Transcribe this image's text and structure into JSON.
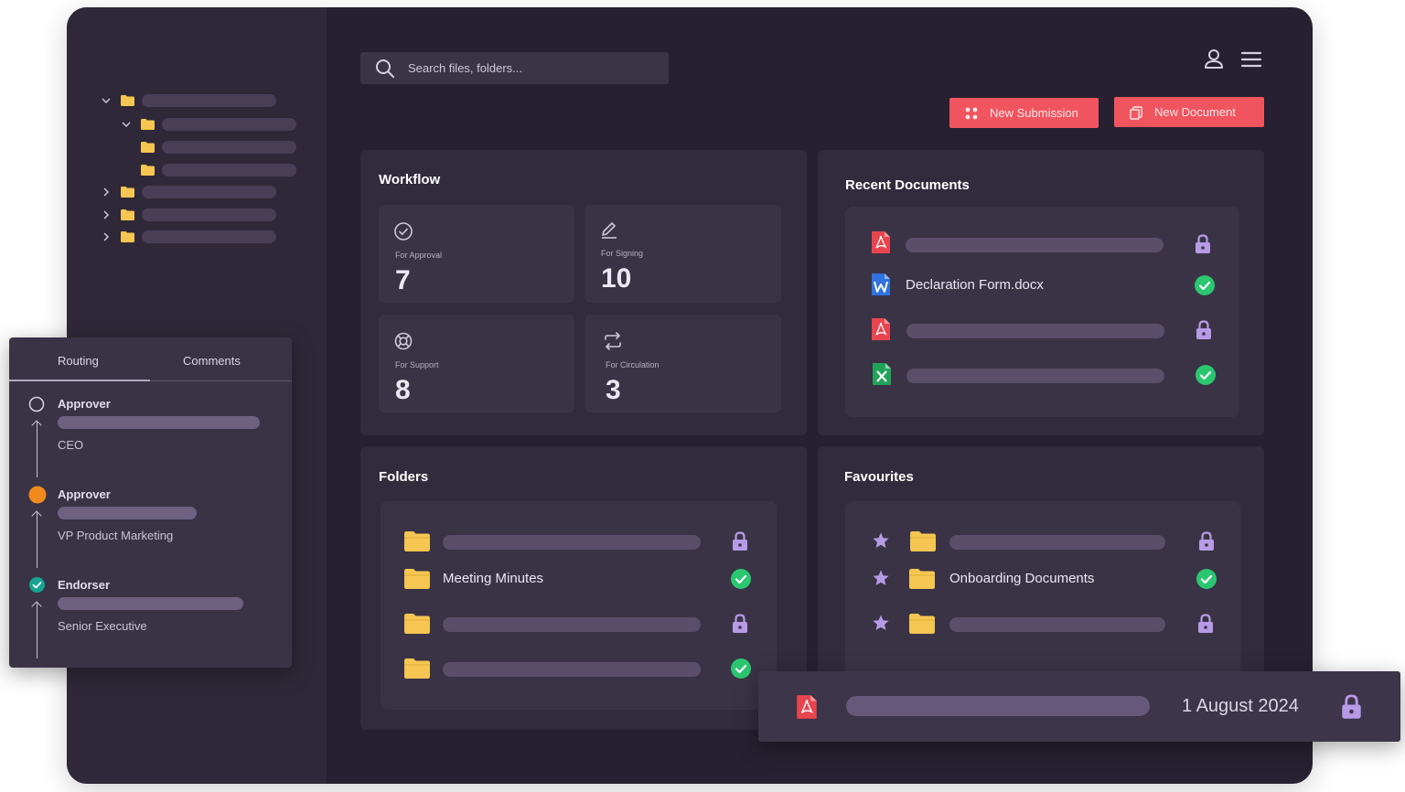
{
  "search": {
    "placeholder": "Search files, folders..."
  },
  "actions": {
    "new_submission": "New Submission",
    "new_document": "New Document"
  },
  "workflow": {
    "title": "Workflow",
    "cards": [
      {
        "label": "For Approval",
        "value": "7",
        "icon": "check-circle-icon"
      },
      {
        "label": "For Signing",
        "value": "10",
        "icon": "pen-icon"
      },
      {
        "label": "For Support",
        "value": "8",
        "icon": "lifebuoy-icon"
      },
      {
        "label": "For Circulation",
        "value": "3",
        "icon": "repeat-icon"
      }
    ]
  },
  "recent_documents": {
    "title": "Recent Documents",
    "items": [
      {
        "type": "pdf",
        "name": "",
        "status": "locked"
      },
      {
        "type": "word",
        "name": "Declaration Form.docx",
        "status": "approved"
      },
      {
        "type": "pdf",
        "name": "",
        "status": "locked"
      },
      {
        "type": "excel",
        "name": "",
        "status": "approved"
      }
    ]
  },
  "folders": {
    "title": "Folders",
    "items": [
      {
        "name": "",
        "status": "locked"
      },
      {
        "name": "Meeting Minutes",
        "status": "approved"
      },
      {
        "name": "",
        "status": "locked"
      },
      {
        "name": "",
        "status": "approved"
      }
    ]
  },
  "favourites": {
    "title": "Favourites",
    "items": [
      {
        "name": "",
        "status": "locked"
      },
      {
        "name": "Onboarding Documents",
        "status": "approved"
      },
      {
        "name": "",
        "status": "locked"
      }
    ]
  },
  "routing_panel": {
    "tabs": [
      "Routing",
      "Comments"
    ],
    "active_tab": "Routing",
    "steps": [
      {
        "role": "Approver",
        "title": "CEO",
        "state": "pending"
      },
      {
        "role": "Approver",
        "title": "VP Product Marketing",
        "state": "in-progress"
      },
      {
        "role": "Endorser",
        "title": "Senior Executive",
        "state": "done"
      }
    ]
  },
  "floating_document": {
    "type": "pdf",
    "date": "1 August 2024",
    "status": "locked"
  },
  "colors": {
    "accent": "#f0555f",
    "background": "#262030",
    "panel": "#322b3c",
    "folder": "#f5c651",
    "check": "#2bc670",
    "lock": "#b79be6",
    "progress": "#f08a1c"
  }
}
